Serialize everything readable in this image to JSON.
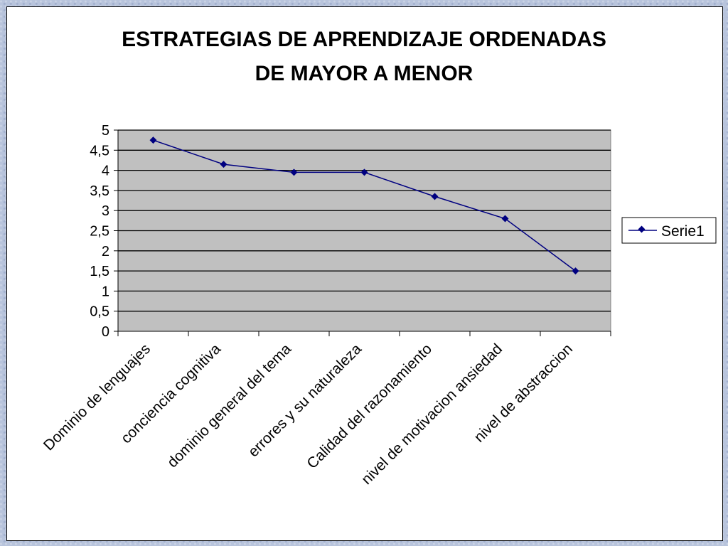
{
  "chart_data": {
    "type": "line",
    "title": [
      "ESTRATEGIAS DE APRENDIZAJE ORDENADAS",
      "DE MAYOR A MENOR"
    ],
    "categories": [
      "Dominio de lenguajes",
      "conciencia cognitiva",
      "dominio general del tema",
      "errores y su naturaleza",
      "Calidad del razonamiento",
      "nivel de motivacion ansiedad",
      "nivel de abstraccion"
    ],
    "series": [
      {
        "name": "Serie1",
        "values": [
          4.75,
          4.15,
          3.95,
          3.95,
          3.35,
          2.8,
          1.5
        ],
        "color": "#000080"
      }
    ],
    "ylim": [
      0,
      5
    ],
    "yticks": [
      "0",
      "0,5",
      "1",
      "1,5",
      "2",
      "2,5",
      "3",
      "3,5",
      "4",
      "4,5",
      "5"
    ],
    "grid": true,
    "plot_background": "#c0c0c0",
    "legend": "right"
  }
}
